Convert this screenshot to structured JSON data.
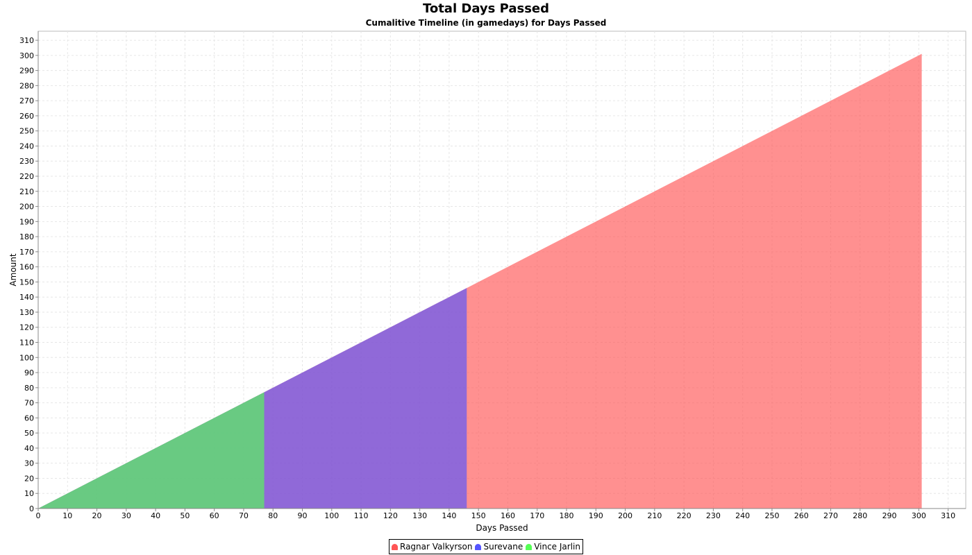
{
  "chart_data": {
    "type": "area",
    "title": "Total Days Passed",
    "subtitle": "Cumalitive Timeline (in gamedays) for Days Passed",
    "xlabel": "Days Passed",
    "ylabel": "Amount",
    "xlim": [
      0,
      316
    ],
    "ylim": [
      0,
      316
    ],
    "x_ticks": [
      0,
      10,
      20,
      30,
      40,
      50,
      60,
      70,
      80,
      90,
      100,
      110,
      120,
      130,
      140,
      150,
      160,
      170,
      180,
      190,
      200,
      210,
      220,
      230,
      240,
      250,
      260,
      270,
      280,
      290,
      300,
      310
    ],
    "y_ticks": [
      0,
      10,
      20,
      30,
      40,
      50,
      60,
      70,
      80,
      90,
      100,
      110,
      120,
      130,
      140,
      150,
      160,
      170,
      180,
      190,
      200,
      210,
      220,
      230,
      240,
      250,
      260,
      270,
      280,
      290,
      300,
      310
    ],
    "grid": true,
    "legend_position": "bottom",
    "series": [
      {
        "name": "Ragnar Valkyrson",
        "color": "#ff5555",
        "x": [
          0,
          301
        ],
        "y": [
          0,
          301
        ]
      },
      {
        "name": "Surevane",
        "color": "#5555ff",
        "x": [
          0,
          146
        ],
        "y": [
          0,
          146
        ]
      },
      {
        "name": "Vince Jarlin",
        "color": "#55ff55",
        "x": [
          0,
          77
        ],
        "y": [
          0,
          77
        ]
      }
    ]
  }
}
